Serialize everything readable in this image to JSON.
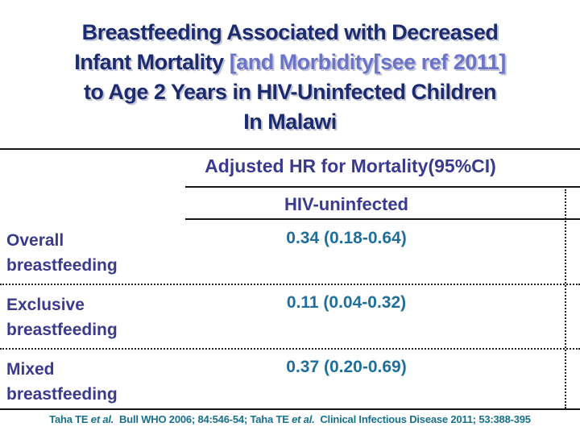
{
  "slide": {
    "title": {
      "line1": "Breastfeeding Associated with Decreased",
      "line2_main": "Infant Mortality ",
      "line2_accent": "[and Morbidity[see ref 2011]",
      "line3": "to Age 2 Years in HIV-Uninfected Children",
      "line4": "In Malawi"
    },
    "table": {
      "column_header": "Adjusted HR for Mortality(95%CI)",
      "column_subheader": "HIV-uninfected",
      "rows": [
        {
          "label": "Overall breastfeeding",
          "value": "0.34 (0.18-0.64)"
        },
        {
          "label": "Exclusive breastfeeding",
          "value": "0.11 (0.04-0.32)"
        },
        {
          "label": "Mixed breastfeeding",
          "value": "0.37 (0.20-0.69)"
        }
      ]
    },
    "footer": {
      "segments": [
        {
          "text": "Taha TE "
        },
        {
          "text": "et al.",
          "italic": true
        },
        {
          "text": "  Bull WHO 2006; 84:546-54; Taha TE "
        },
        {
          "text": "et al.",
          "italic": true
        },
        {
          "text": "  Clinical Infectious Disease 2011; 53:388-395"
        }
      ]
    },
    "colors": {
      "title_navy": "#1c2b6e",
      "title_accent": "#6b74c8",
      "table_indigo": "#3a3a8e",
      "value_teal": "#1f6f9e",
      "footer_teal": "#17708c",
      "line_color": "#161616"
    }
  }
}
